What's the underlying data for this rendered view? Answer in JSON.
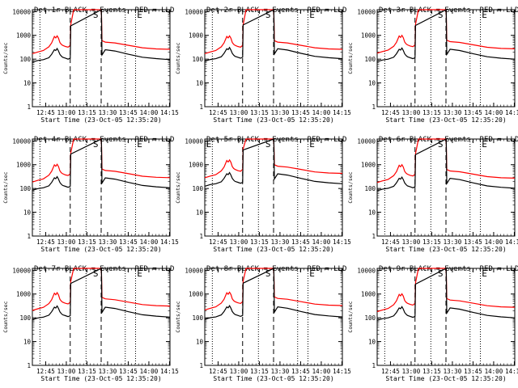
{
  "page": {
    "background": "#ffffff",
    "ink": "#000000",
    "accent": "#ff0000"
  },
  "chart_data": [
    {
      "type": "line",
      "title": "Det 1r BLACK = Events, RED = LLD",
      "xlabel": "Start Time (23-Oct-05 12:35:20)",
      "ylabel": "Counts/sec",
      "letters": [
        "S",
        "E"
      ],
      "black_shift": 0,
      "red_shift": 0
    },
    {
      "type": "line",
      "title": "Det 2r BLACK = Events, RED = LLD",
      "xlabel": "Start Time (23-Oct-05 12:35:20)",
      "ylabel": "Counts/sec",
      "letters": [
        "S",
        "E"
      ],
      "black_shift": 0.04,
      "red_shift": 0
    },
    {
      "type": "line",
      "title": "Det 3r BLACK = Events, RED = LLD",
      "xlabel": "Start Time (23-Oct-05 12:35:20)",
      "ylabel": "Counts/sec",
      "letters": [
        "S",
        "E"
      ],
      "black_shift": 0.02,
      "red_shift": 0.02
    },
    {
      "type": "line",
      "title": "Det 4r BLACK = Events, RED = LLD",
      "xlabel": "Start Time (23-Oct-05 12:35:20)",
      "ylabel": "Counts/sec",
      "letters": [
        "S",
        "E"
      ],
      "black_shift": 0.05,
      "red_shift": 0.04
    },
    {
      "type": "line",
      "title": "Det 5r BLACK = Events, RED = LLD",
      "xlabel": "Start Time (23-Oct-05 12:35:20)",
      "ylabel": "Counts/sec",
      "letters": [
        "E",
        "S",
        "E"
      ],
      "black_shift": 0.22,
      "red_shift": 0.22
    },
    {
      "type": "line",
      "title": "Det 6r BLACK = Events, RED = LLD",
      "xlabel": "Start Time (23-Oct-05 12:35:20)",
      "ylabel": "Counts/sec",
      "letters": [
        "S",
        "E"
      ],
      "black_shift": 0.03,
      "red_shift": 0.02
    },
    {
      "type": "line",
      "title": "Det 7r BLACK = Events, RED = LLD",
      "xlabel": "Start Time (23-Oct-05 12:35:20)",
      "ylabel": "Counts/sec",
      "letters": [
        "S",
        "E"
      ],
      "black_shift": 0.05,
      "red_shift": 0.08
    },
    {
      "type": "line",
      "title": "Det 8r BLACK = Events, RED = LLD",
      "xlabel": "Start Time (23-Oct-05 12:35:20)",
      "ylabel": "Counts/sec",
      "letters": [
        "S",
        "E"
      ],
      "black_shift": 0.06,
      "red_shift": 0.1
    },
    {
      "type": "line",
      "title": "Det 9r BLACK = Events, RED = LLD",
      "xlabel": "Start Time (23-Oct-05 12:35:20)",
      "ylabel": "Counts/sec",
      "letters": [
        "S",
        "E"
      ],
      "black_shift": 0.02,
      "red_shift": 0.03
    }
  ],
  "axes": {
    "xticks": [
      "12:45",
      "13:00",
      "13:15",
      "13:30",
      "13:45",
      "14:00",
      "14:15"
    ],
    "xtick_minutes": [
      9.67,
      24.67,
      39.67,
      54.67,
      69.67,
      84.67,
      99.67
    ],
    "xlim": [
      0,
      100
    ],
    "ytick_labels": [
      "1",
      "10",
      "100",
      "1000",
      "10000"
    ],
    "ytick_values": [
      1,
      10,
      100,
      1000,
      10000
    ],
    "ylim": [
      1,
      12000
    ],
    "ylog": true
  },
  "markers": {
    "dotted_x": [
      5.5,
      39.0,
      67.5,
      75.0
    ],
    "dashed_x": [
      27.5,
      50.0
    ]
  },
  "events_series": {
    "x": [
      0,
      4,
      8,
      12,
      14,
      16,
      17,
      18,
      19,
      20,
      21,
      22,
      24,
      26,
      27.5,
      27.9,
      50.2,
      50.6,
      53,
      60,
      70,
      80,
      90,
      100
    ],
    "y": [
      75,
      88,
      95,
      115,
      160,
      250,
      230,
      280,
      220,
      160,
      135,
      120,
      110,
      100,
      110,
      2500,
      15000,
      150,
      250,
      220,
      160,
      120,
      105,
      95
    ]
  },
  "lld_series": {
    "x": [
      0,
      4,
      8,
      12,
      14,
      16,
      17,
      18,
      19,
      20,
      21,
      22,
      24,
      26,
      27.5,
      27.9,
      30,
      50.2,
      50.6,
      53,
      60,
      70,
      80,
      90,
      100
    ],
    "y": [
      170,
      200,
      230,
      330,
      480,
      900,
      780,
      950,
      760,
      500,
      420,
      380,
      340,
      320,
      380,
      2800,
      12000,
      12000,
      600,
      520,
      480,
      380,
      300,
      270,
      260
    ]
  }
}
